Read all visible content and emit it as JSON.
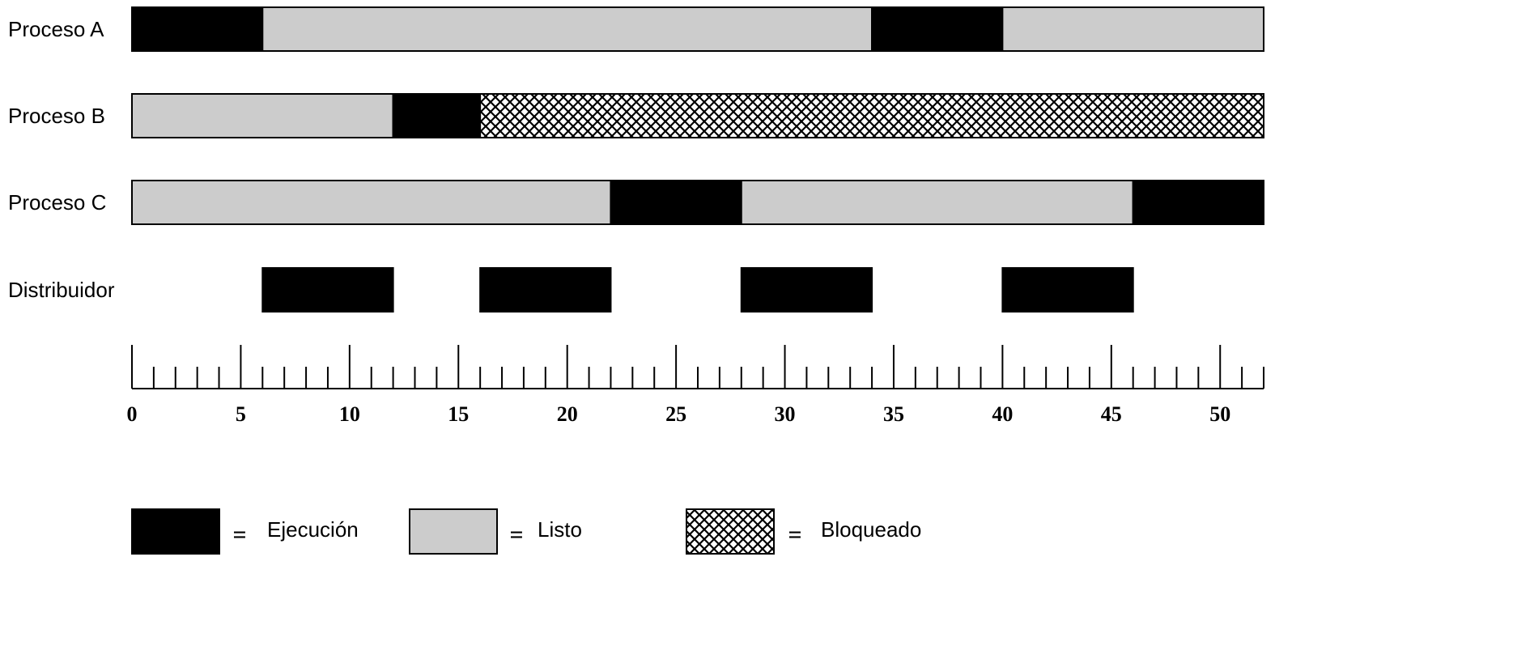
{
  "chart_data": {
    "type": "gantt",
    "time_unit": "tick",
    "axis": {
      "min": 0,
      "max": 52,
      "minor_step": 1,
      "major_step": 5,
      "tick_labels": [
        "0",
        "5",
        "10",
        "15",
        "20",
        "25",
        "30",
        "35",
        "40",
        "45",
        "50"
      ]
    },
    "rows": [
      {
        "label": "Proceso A",
        "segments": [
          {
            "start": 0,
            "end": 6,
            "state": "ejecucion"
          },
          {
            "start": 6,
            "end": 34,
            "state": "listo"
          },
          {
            "start": 34,
            "end": 40,
            "state": "ejecucion"
          },
          {
            "start": 40,
            "end": 52,
            "state": "listo"
          }
        ]
      },
      {
        "label": "Proceso B",
        "segments": [
          {
            "start": 0,
            "end": 12,
            "state": "listo"
          },
          {
            "start": 12,
            "end": 16,
            "state": "ejecucion"
          },
          {
            "start": 16,
            "end": 52,
            "state": "bloqueado"
          }
        ]
      },
      {
        "label": "Proceso C",
        "segments": [
          {
            "start": 0,
            "end": 22,
            "state": "listo"
          },
          {
            "start": 22,
            "end": 28,
            "state": "ejecucion"
          },
          {
            "start": 28,
            "end": 46,
            "state": "listo"
          },
          {
            "start": 46,
            "end": 52,
            "state": "ejecucion"
          }
        ]
      },
      {
        "label": "Distribuidor",
        "segments": [
          {
            "start": 6,
            "end": 12,
            "state": "ejecucion"
          },
          {
            "start": 16,
            "end": 22,
            "state": "ejecucion"
          },
          {
            "start": 28,
            "end": 34,
            "state": "ejecucion"
          },
          {
            "start": 40,
            "end": 46,
            "state": "ejecucion"
          }
        ]
      }
    ],
    "legend": [
      {
        "state": "ejecucion",
        "equals": "=",
        "label": "Ejecución"
      },
      {
        "state": "listo",
        "equals": "=",
        "label": "Listo"
      },
      {
        "state": "bloqueado",
        "equals": "=",
        "label": "Bloqueado"
      }
    ],
    "colors": {
      "ejecucion": "#000000",
      "listo": "#cccccc",
      "bloqueado_pattern": "#000000",
      "bloqueado_bg": "#ffffff"
    }
  }
}
